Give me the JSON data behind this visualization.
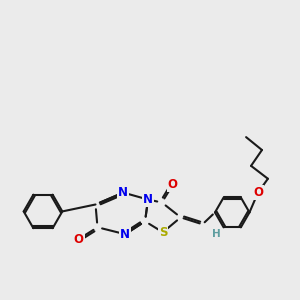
{
  "bg_color": "#ebebeb",
  "bond_color": "#1a1a1a",
  "N_color": "#0000ee",
  "O_color": "#dd0000",
  "S_color": "#aaaa00",
  "H_color": "#5f9ea0",
  "lw": 1.5,
  "dbg": 0.06,
  "fs": 8.5,
  "xlim": [
    0.5,
    10.5
  ],
  "ylim": [
    2.8,
    9.2
  ]
}
